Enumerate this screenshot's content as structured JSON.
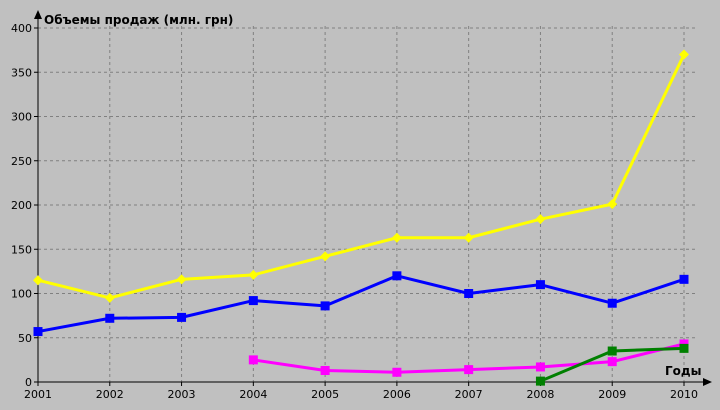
{
  "chart_data": {
    "type": "line",
    "title": "",
    "ylabel": "Объемы продаж (млн. грн)",
    "xlabel": "Годы",
    "x": [
      "2001",
      "2002",
      "2003",
      "2004",
      "2005",
      "2006",
      "2007",
      "2008",
      "2009",
      "2010"
    ],
    "y_ticks": [
      0,
      50,
      100,
      150,
      200,
      250,
      300,
      350,
      400
    ],
    "ylim": [
      0,
      400
    ],
    "grid": true,
    "legend": "none",
    "series": [
      {
        "color": "#ffff00",
        "marker": "diamond",
        "values": [
          115,
          95,
          116,
          121,
          142,
          163,
          163,
          184,
          201,
          370
        ]
      },
      {
        "color": "#0000ff",
        "marker": "square",
        "values": [
          57,
          72,
          73,
          92,
          86,
          120,
          100,
          110,
          89,
          116
        ]
      },
      {
        "color": "#ff00ff",
        "marker": "square",
        "values": [
          null,
          null,
          null,
          25,
          13,
          11,
          14,
          17,
          23,
          43
        ]
      },
      {
        "color": "#008000",
        "marker": "square",
        "values": [
          null,
          null,
          null,
          null,
          null,
          null,
          null,
          1,
          35,
          38
        ]
      }
    ]
  }
}
